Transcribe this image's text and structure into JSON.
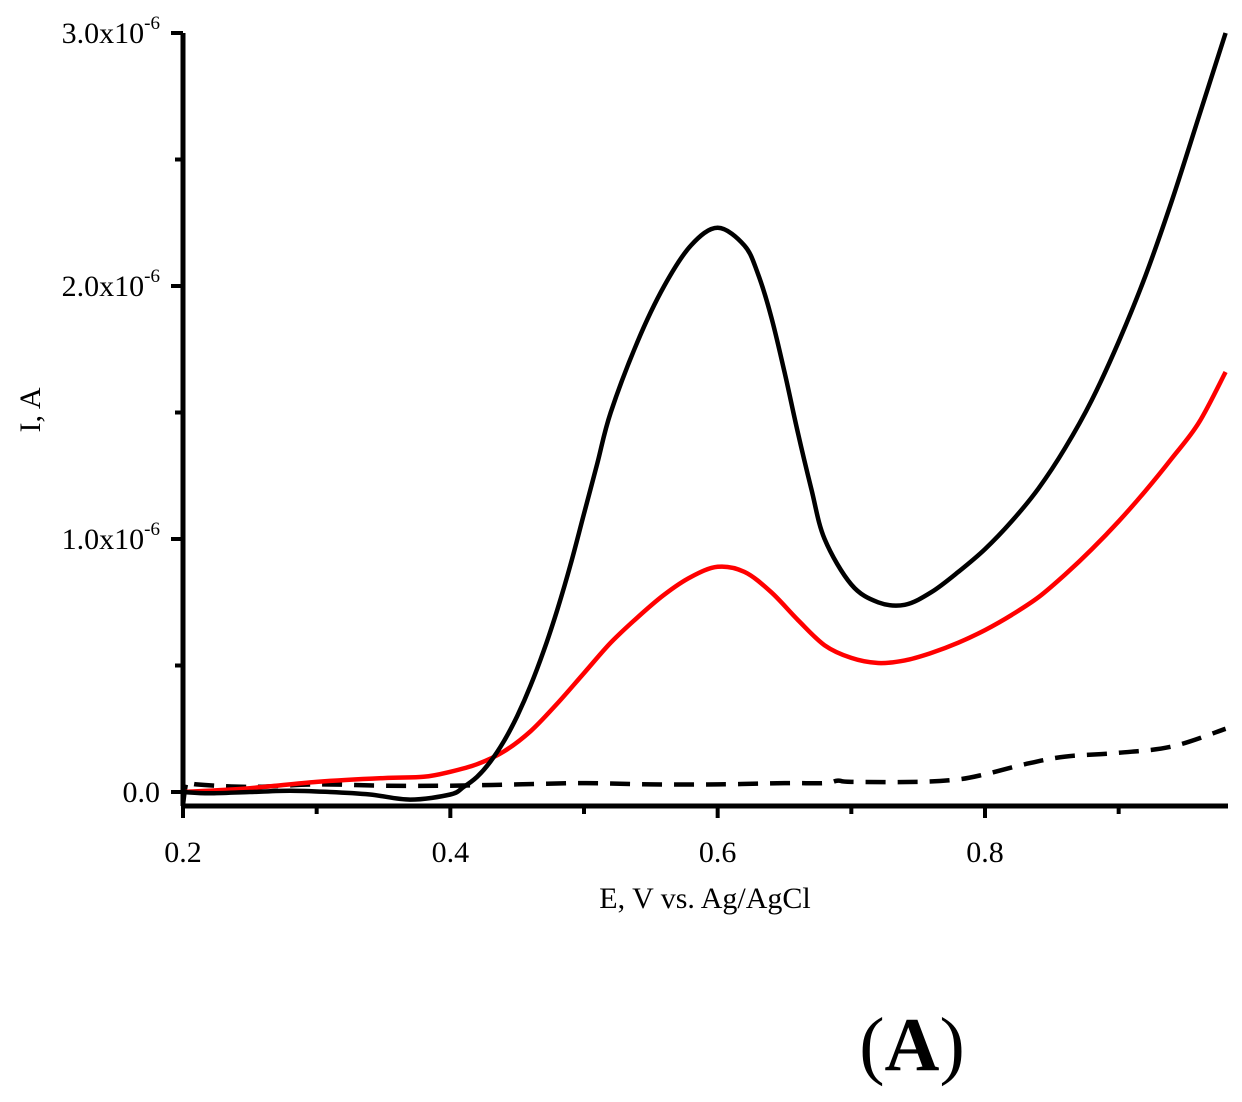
{
  "chart_data": {
    "type": "line",
    "panel_label": {
      "open": "(",
      "letter": "A",
      "close": ")"
    },
    "xlabel": "E, V vs. Ag/AgCl",
    "ylabel": "I, A",
    "xlim": [
      0.2,
      0.98
    ],
    "ylim": [
      -8e-08,
      3e-06
    ],
    "x_ticks": [
      {
        "value": 0.2,
        "label": "0.2"
      },
      {
        "value": 0.4,
        "label": "0.4"
      },
      {
        "value": 0.6,
        "label": "0.6"
      },
      {
        "value": 0.8,
        "label": "0.8"
      }
    ],
    "x_minor_ticks": [
      0.3,
      0.5,
      0.7,
      0.9
    ],
    "y_ticks": [
      {
        "value": 0,
        "mantissa": "0.0",
        "exponent": ""
      },
      {
        "value": 1e-06,
        "mantissa": "1.0x10",
        "exponent": "-6"
      },
      {
        "value": 2e-06,
        "mantissa": "2.0x10",
        "exponent": "-6"
      },
      {
        "value": 3e-06,
        "mantissa": "3.0x10",
        "exponent": "-6"
      }
    ],
    "y_minor_ticks": [
      5e-07,
      1.5e-06,
      2.5e-06
    ],
    "series": [
      {
        "name": "dashed-black",
        "color": "#000000",
        "style": "dashed",
        "x": [
          0.2,
          0.203,
          0.21,
          0.25,
          0.3,
          0.35,
          0.4,
          0.45,
          0.5,
          0.55,
          0.6,
          0.65,
          0.68,
          0.69,
          0.7,
          0.75,
          0.78,
          0.8,
          0.83,
          0.86,
          0.9,
          0.94,
          0.98
        ],
        "y": [
          -5e-08,
          4e-08,
          3e-08,
          2e-08,
          3e-08,
          2.5e-08,
          2.5e-08,
          3e-08,
          3.5e-08,
          3e-08,
          3e-08,
          3.5e-08,
          3.5e-08,
          4.5e-08,
          4e-08,
          4e-08,
          5e-08,
          7e-08,
          1.1e-07,
          1.4e-07,
          1.55e-07,
          1.8e-07,
          2.5e-07
        ]
      },
      {
        "name": "red",
        "color": "#ff0000",
        "style": "solid",
        "x": [
          0.2,
          0.25,
          0.3,
          0.35,
          0.38,
          0.4,
          0.42,
          0.44,
          0.46,
          0.48,
          0.5,
          0.52,
          0.54,
          0.56,
          0.58,
          0.6,
          0.62,
          0.64,
          0.66,
          0.68,
          0.7,
          0.72,
          0.74,
          0.76,
          0.78,
          0.8,
          0.82,
          0.84,
          0.86,
          0.88,
          0.9,
          0.92,
          0.94,
          0.96,
          0.98
        ],
        "y": [
          0.0,
          1.5e-08,
          4e-08,
          5.5e-08,
          6e-08,
          8e-08,
          1.1e-07,
          1.6e-07,
          2.4e-07,
          3.5e-07,
          4.7e-07,
          5.9e-07,
          6.9e-07,
          7.8e-07,
          8.5e-07,
          8.9e-07,
          8.7e-07,
          7.9e-07,
          6.8e-07,
          5.8e-07,
          5.3e-07,
          5.1e-07,
          5.2e-07,
          5.5e-07,
          5.9e-07,
          6.4e-07,
          7e-07,
          7.7e-07,
          8.6e-07,
          9.6e-07,
          1.07e-06,
          1.19e-06,
          1.32e-06,
          1.46e-06,
          1.66e-06
        ]
      },
      {
        "name": "solid-black",
        "color": "#000000",
        "style": "solid",
        "x": [
          0.2,
          0.22,
          0.25,
          0.28,
          0.31,
          0.34,
          0.37,
          0.4,
          0.41,
          0.42,
          0.43,
          0.44,
          0.45,
          0.46,
          0.47,
          0.48,
          0.49,
          0.5,
          0.51,
          0.52,
          0.54,
          0.56,
          0.58,
          0.6,
          0.62,
          0.63,
          0.64,
          0.65,
          0.66,
          0.67,
          0.68,
          0.7,
          0.72,
          0.74,
          0.76,
          0.78,
          0.8,
          0.82,
          0.84,
          0.86,
          0.88,
          0.9,
          0.92,
          0.94,
          0.96,
          0.98
        ],
        "y": [
          0.0,
          -5e-09,
          0.0,
          5e-09,
          0.0,
          -1e-08,
          -3e-08,
          -1e-08,
          2e-08,
          6e-08,
          1.2e-07,
          2e-07,
          3e-07,
          4.2e-07,
          5.6e-07,
          7.2e-07,
          9e-07,
          1.1e-06,
          1.3e-06,
          1.5e-06,
          1.78e-06,
          2e-06,
          2.16e-06,
          2.23e-06,
          2.16e-06,
          2.05e-06,
          1.88e-06,
          1.66e-06,
          1.42e-06,
          1.2e-06,
          1e-06,
          8.2e-07,
          7.5e-07,
          7.4e-07,
          7.9e-07,
          8.7e-07,
          9.6e-07,
          1.07e-06,
          1.2e-06,
          1.36e-06,
          1.55e-06,
          1.78e-06,
          2.04e-06,
          2.34e-06,
          2.67e-06,
          3e-06
        ]
      }
    ]
  }
}
